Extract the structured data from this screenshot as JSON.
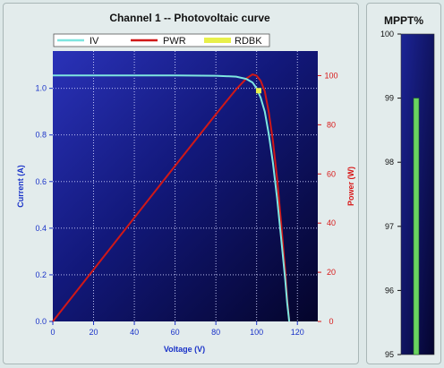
{
  "chart_data": [
    {
      "type": "line",
      "title": "Channel 1 -- Photovoltaic curve",
      "xlabel": "Voltage (V)",
      "ylabel": "Current (A)",
      "y2label": "Power (W)",
      "xlim": [
        0,
        130
      ],
      "ylim": [
        0,
        1.16
      ],
      "y2lim": [
        0,
        110
      ],
      "x_ticks": [
        0,
        20,
        40,
        60,
        80,
        100,
        120
      ],
      "y_ticks": [
        0.0,
        0.2,
        0.4,
        0.6,
        0.8,
        1.0
      ],
      "y_tick_labels": [
        "0.0",
        "0.2",
        "0.4",
        "0.6",
        "0.8",
        "1.0"
      ],
      "y2_ticks": [
        0,
        20,
        40,
        60,
        80,
        100
      ],
      "grid": true,
      "legend": [
        "IV",
        "PWR",
        "RDBK"
      ],
      "legend_placement": "top",
      "series": [
        {
          "name": "IV",
          "color": "#7ee6e0",
          "axis": "left",
          "x": [
            0,
            20,
            40,
            60,
            80,
            90,
            95,
            98,
            100,
            102,
            104,
            106,
            108,
            110,
            112,
            114,
            115,
            116
          ],
          "y": [
            1.055,
            1.055,
            1.055,
            1.055,
            1.054,
            1.05,
            1.04,
            1.025,
            1.0,
            0.96,
            0.9,
            0.8,
            0.68,
            0.53,
            0.36,
            0.18,
            0.08,
            0.0
          ]
        },
        {
          "name": "PWR",
          "color": "#d01818",
          "axis": "right",
          "x": [
            0,
            20,
            40,
            60,
            80,
            90,
            95,
            98,
            100,
            102,
            104,
            106,
            108,
            110,
            112,
            114,
            115,
            116
          ],
          "y": [
            0,
            21.1,
            42.2,
            63.3,
            84.3,
            94.5,
            98.8,
            100.5,
            100.0,
            97.9,
            93.6,
            84.8,
            73.4,
            58.3,
            40.3,
            20.5,
            9.2,
            0
          ]
        },
        {
          "name": "RDBK",
          "color": "#e8f04a",
          "axis": "left",
          "x": [
            101
          ],
          "y": [
            0.99
          ]
        }
      ]
    },
    {
      "type": "bar",
      "title": "MPPT%",
      "ylim": [
        95,
        100
      ],
      "y_ticks": [
        95,
        96,
        97,
        98,
        99,
        100
      ],
      "values": [
        99
      ],
      "bar_color": "#6ad460",
      "background_color": "#0a0a5a"
    }
  ]
}
